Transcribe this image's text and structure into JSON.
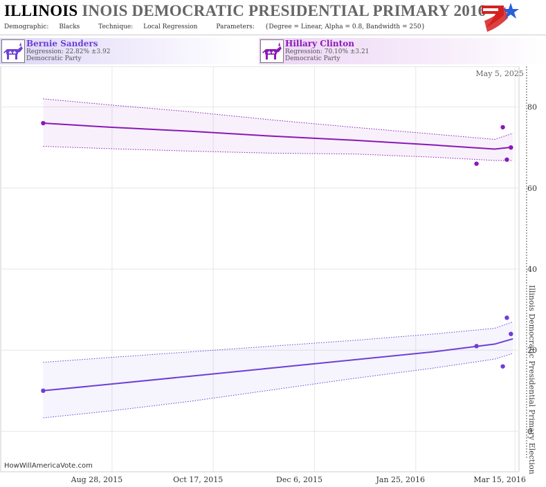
{
  "header": {
    "title_state": "ILLINOIS",
    "title_rest": "INOIS DEMOCRATIC PRESIDENTIAL PRIMARY 2016",
    "demographic_label": "Demographic:",
    "demographic_value": "Blacks",
    "technique_label": "Technique:",
    "technique_value": "Local Regression",
    "parameters_label": "Parameters:",
    "parameters_value": "{Degree = Linear, Alpha = 0.8, Bandwidth = 250}"
  },
  "candidates": [
    {
      "name": "Bernie Sanders",
      "regression": "Regression: 22.82% ±3.92",
      "party": "Democratic Party",
      "color": "#6d3fd6",
      "icon": "donkey-icon"
    },
    {
      "name": "Hillary Clinton",
      "regression": "Regression: 70.10% ±3.21",
      "party": "Democratic Party",
      "color": "#8a17b8",
      "icon": "donkey-icon"
    }
  ],
  "footer": "HowWillAmericaVote.com",
  "colors": {
    "sanders": "#6d3fd6",
    "clinton": "#8a17b8",
    "grid": "#e6e6e6",
    "logo_red": "#d62020",
    "logo_blue": "#2a5fd6"
  },
  "chart_data": {
    "type": "line",
    "x_ticks": [
      "Aug 28, 2015",
      "Oct 17, 2015",
      "Dec 6, 2015",
      "Jan 25, 2016",
      "Mar 15, 2016"
    ],
    "x_tick_days": [
      -199,
      -149,
      -99,
      -49,
      0
    ],
    "x_range_days": [
      -254,
      2
    ],
    "x_zero_date": "Mar 15, 2016",
    "y_ticks": [
      0,
      20,
      40,
      60,
      80
    ],
    "ylim": [
      -10,
      90
    ],
    "grid": true,
    "election_label": "Illinois Democratic Presidential Primary Election",
    "date_label": "May 5, 2025",
    "series": [
      {
        "name": "Bernie Sanders",
        "x_days": [
          -233,
          -200,
          -160,
          -120,
          -80,
          -40,
          -10,
          -1
        ],
        "trend": [
          10,
          11.6,
          13.6,
          15.6,
          17.6,
          19.6,
          21.5,
          22.8
        ],
        "upper": [
          17,
          18.2,
          19.6,
          21,
          22.4,
          24,
          25.4,
          27
        ],
        "lower": [
          3.3,
          5,
          7.4,
          10.2,
          13,
          15.6,
          17.8,
          19.2
        ],
        "points": [
          [
            -233,
            10
          ],
          [
            -19,
            21
          ],
          [
            -6,
            16
          ],
          [
            -4,
            28
          ],
          [
            -2,
            24
          ]
        ]
      },
      {
        "name": "Hillary Clinton",
        "x_days": [
          -233,
          -200,
          -160,
          -120,
          -80,
          -40,
          -10,
          -1
        ],
        "trend": [
          76,
          75,
          74,
          72.8,
          71.8,
          70.6,
          69.6,
          70.1
        ],
        "upper": [
          82,
          80.5,
          78.8,
          76.8,
          75,
          73.3,
          72,
          73.5
        ],
        "lower": [
          70.3,
          69.7,
          69.1,
          68.6,
          68.4,
          67.6,
          66.8,
          66.8
        ],
        "points": [
          [
            -233,
            76
          ],
          [
            -19,
            66
          ],
          [
            -6,
            75
          ],
          [
            -4,
            67
          ],
          [
            -2,
            70
          ]
        ]
      }
    ]
  }
}
